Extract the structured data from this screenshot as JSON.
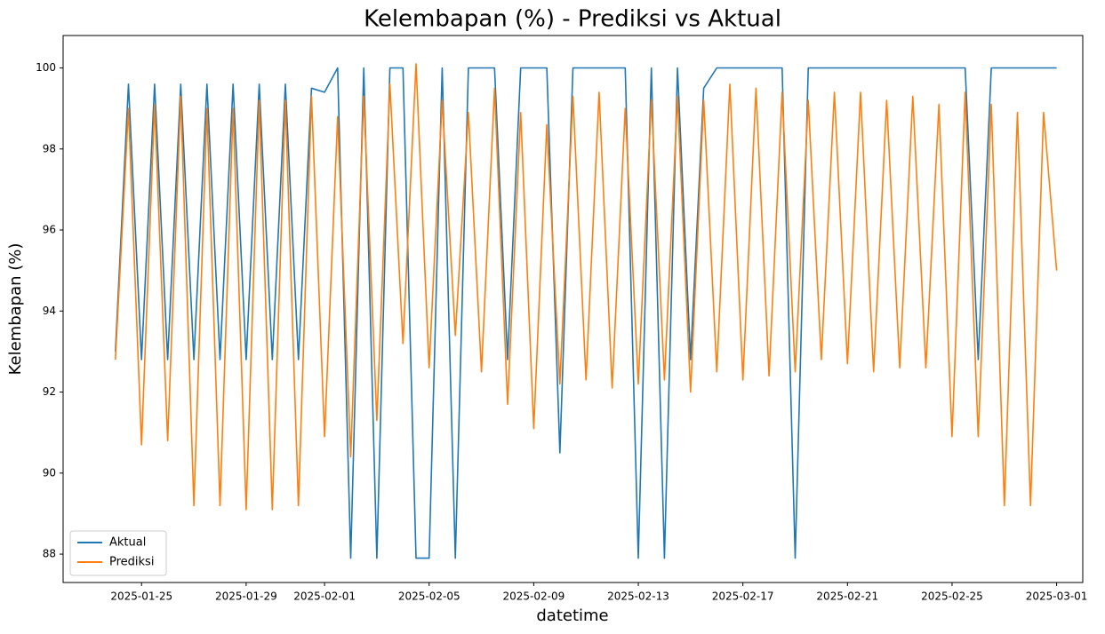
{
  "chart_data": {
    "type": "line",
    "title": "Kelembapan (%) - Prediksi vs Aktual",
    "xlabel": "datetime",
    "ylabel": "Kelembapan (%)",
    "x": [
      "2025-01-24",
      "2025-01-24",
      "2025-01-25",
      "2025-01-25",
      "2025-01-26",
      "2025-01-26",
      "2025-01-27",
      "2025-01-27",
      "2025-01-28",
      "2025-01-28",
      "2025-01-29",
      "2025-01-29",
      "2025-01-30",
      "2025-01-30",
      "2025-01-31",
      "2025-01-31",
      "2025-02-01",
      "2025-02-01",
      "2025-02-02",
      "2025-02-02",
      "2025-02-03",
      "2025-02-03",
      "2025-02-04",
      "2025-02-04",
      "2025-02-05",
      "2025-02-05",
      "2025-02-06",
      "2025-02-06",
      "2025-02-07",
      "2025-02-07",
      "2025-02-08",
      "2025-02-08",
      "2025-02-09",
      "2025-02-09",
      "2025-02-10",
      "2025-02-10",
      "2025-02-11",
      "2025-02-11",
      "2025-02-12",
      "2025-02-12",
      "2025-02-13",
      "2025-02-13",
      "2025-02-14",
      "2025-02-14",
      "2025-02-15",
      "2025-02-15",
      "2025-02-16",
      "2025-02-16",
      "2025-02-17",
      "2025-02-17",
      "2025-02-18",
      "2025-02-18",
      "2025-02-19",
      "2025-02-19",
      "2025-02-20",
      "2025-02-20",
      "2025-02-21",
      "2025-02-21",
      "2025-02-22",
      "2025-02-22",
      "2025-02-23",
      "2025-02-23",
      "2025-02-24",
      "2025-02-24",
      "2025-02-25",
      "2025-02-25",
      "2025-02-26",
      "2025-02-26",
      "2025-02-27",
      "2025-02-27",
      "2025-02-28",
      "2025-02-28",
      "2025-03-01"
    ],
    "series": [
      {
        "name": "Aktual",
        "color": "#1f77b4",
        "values": [
          93.0,
          99.6,
          92.8,
          99.6,
          92.8,
          99.6,
          92.8,
          99.6,
          92.8,
          99.6,
          92.8,
          99.6,
          92.8,
          99.6,
          92.8,
          99.5,
          99.4,
          100,
          87.9,
          100,
          87.9,
          100,
          100,
          87.9,
          87.9,
          100,
          87.9,
          100,
          100,
          100,
          92.8,
          100,
          100,
          100,
          90.5,
          100,
          100,
          100,
          100,
          100,
          87.9,
          100,
          87.9,
          100,
          92.8,
          99.5,
          100,
          100,
          100,
          100,
          100,
          100,
          87.9,
          100,
          100,
          100,
          100,
          100,
          100,
          100,
          100,
          100,
          100,
          100,
          100,
          100,
          92.8,
          100,
          100,
          100,
          100,
          100,
          100
        ]
      },
      {
        "name": "Prediksi",
        "color": "#ff7f0e",
        "values": [
          92.8,
          99.0,
          90.7,
          99.1,
          90.8,
          99.3,
          89.2,
          99.0,
          89.2,
          99.0,
          89.1,
          99.2,
          89.1,
          99.2,
          89.2,
          99.3,
          90.9,
          98.8,
          90.4,
          99.3,
          91.3,
          99.6,
          93.2,
          100.1,
          92.6,
          99.2,
          93.4,
          98.9,
          92.5,
          99.5,
          91.7,
          98.9,
          91.1,
          98.6,
          92.2,
          99.3,
          92.3,
          99.4,
          92.1,
          99.0,
          92.2,
          99.2,
          92.3,
          99.3,
          92.0,
          99.2,
          92.5,
          99.6,
          92.3,
          99.5,
          92.4,
          99.4,
          92.5,
          99.2,
          92.8,
          99.4,
          92.7,
          99.4,
          92.5,
          99.2,
          92.6,
          99.3,
          92.6,
          99.1,
          90.9,
          99.4,
          90.9,
          99.1,
          89.2,
          98.9,
          89.2,
          98.9,
          95.0
        ]
      }
    ],
    "xlim": [
      "2025-01-22",
      "2025-03-02"
    ],
    "xticks": [
      "2025-01-25",
      "2025-01-29",
      "2025-02-01",
      "2025-02-05",
      "2025-02-09",
      "2025-02-13",
      "2025-02-17",
      "2025-02-21",
      "2025-02-25",
      "2025-03-01"
    ],
    "ylim": [
      87.3,
      100.8
    ],
    "yticks": [
      88,
      90,
      92,
      94,
      96,
      98,
      100
    ],
    "legend": "lower left"
  }
}
